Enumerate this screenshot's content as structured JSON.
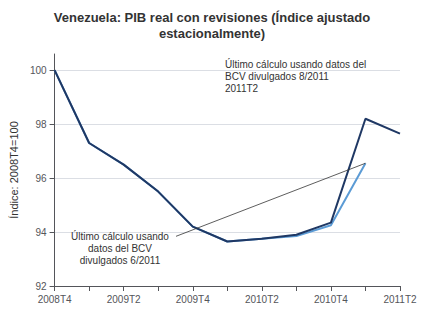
{
  "chart_data": {
    "type": "line",
    "title": "Venezuela: PIB real con revisiones (Índice ajustado\nestacionalmente)",
    "ylabel": "Índice: 2008T4=100",
    "categories": [
      "2008T4",
      null,
      "2009T2",
      null,
      "2009T4",
      null,
      "2010T2",
      null,
      "2010T4",
      null,
      "2011T2"
    ],
    "series": [
      {
        "color": "#5b9bd5",
        "values": [
          100.0,
          97.3,
          96.5,
          95.5,
          94.2,
          93.65,
          93.75,
          93.85,
          94.25,
          96.55,
          null
        ]
      },
      {
        "color": "#1f3864",
        "values": [
          100.0,
          97.3,
          96.5,
          95.5,
          94.2,
          93.65,
          93.75,
          93.9,
          94.35,
          98.2,
          97.65
        ]
      }
    ],
    "ylim": [
      92,
      100.6
    ],
    "yticks": [
      92,
      94,
      96,
      98,
      100
    ],
    "grid": true,
    "annotations": [
      "Último cálculo usando\ndatos del BCV\ndivulgados 6/2011",
      "Último cálculo usando datos del\nBCV divulgados 8/2011\n2011T2"
    ]
  }
}
